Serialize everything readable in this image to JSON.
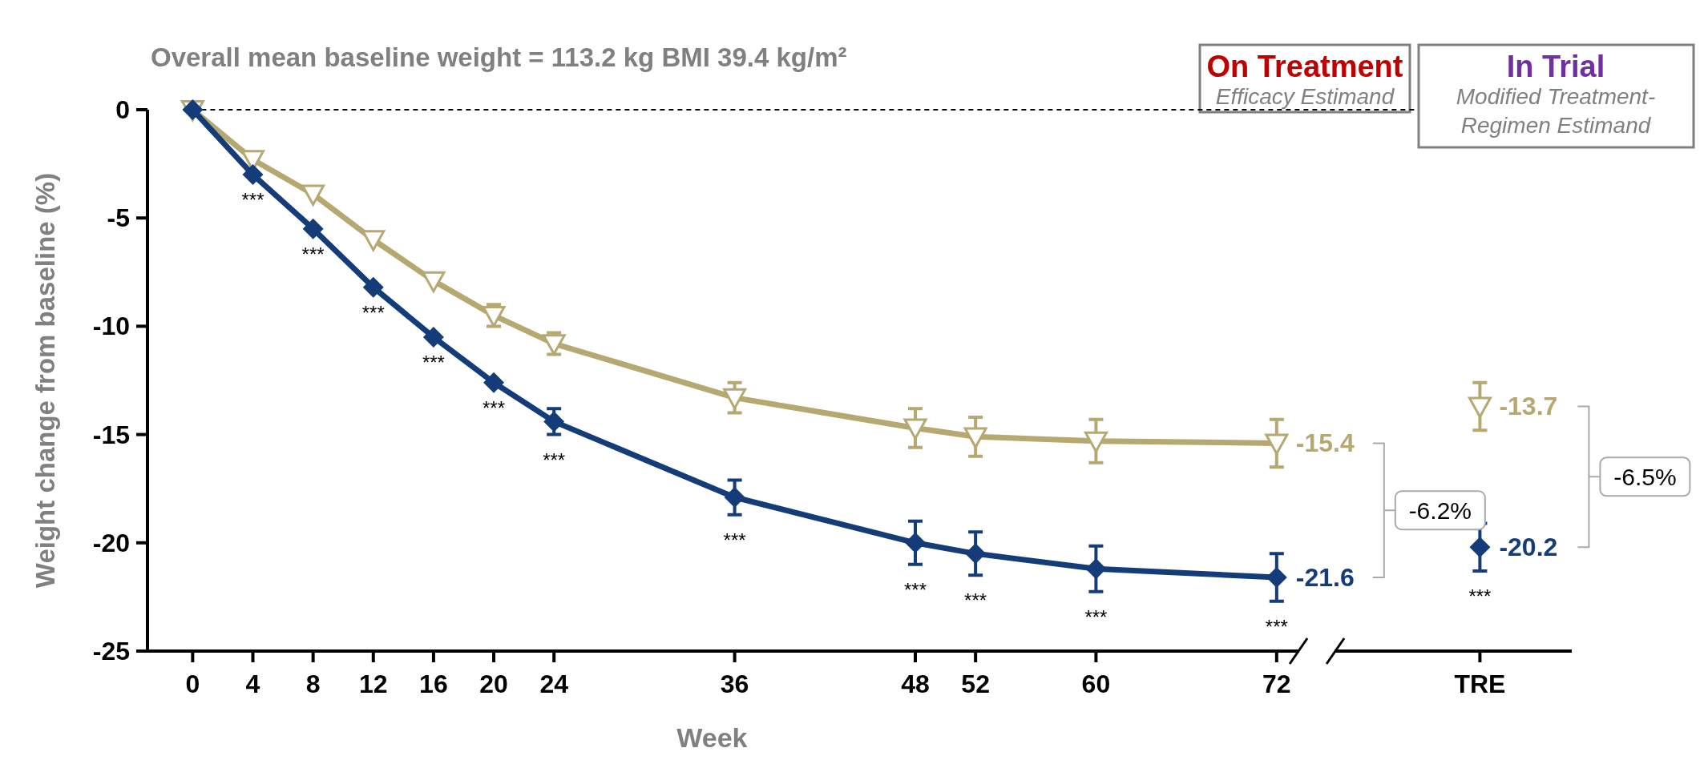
{
  "chart_data": {
    "type": "line",
    "title": "Overall mean baseline weight = 113.2 kg BMI 39.4 kg/m²",
    "xlabel": "Week",
    "ylabel": "Weight change from baseline (%)",
    "xlim": [
      -3,
      91.6
    ],
    "xticks": [
      0,
      4,
      8,
      12,
      16,
      20,
      24,
      36,
      48,
      52,
      60,
      72,
      {
        "value": 85.5,
        "label": "TRE"
      }
    ],
    "ylim": [
      -25,
      0
    ],
    "yticks": [
      -25,
      -20,
      -15,
      -10,
      -5,
      0
    ],
    "ref_lines": [
      {
        "axis": "y",
        "value": 0,
        "line_style": "dashed",
        "color": "#000000"
      }
    ],
    "series": [
      {
        "color": "#b5a871",
        "marker": "triangle",
        "x": [
          0,
          4,
          8,
          12,
          16,
          20,
          24,
          36,
          48,
          52,
          60,
          72
        ],
        "values": [
          0,
          -2.3,
          -3.9,
          -6.0,
          -7.9,
          -9.5,
          -10.8,
          -13.3,
          -14.7,
          -15.1,
          -15.3,
          -15.4
        ],
        "errors": [
          null,
          null,
          null,
          null,
          null,
          0.5,
          0.5,
          0.7,
          0.9,
          0.9,
          1.0,
          1.1
        ],
        "value_labels": [
          null,
          null,
          null,
          null,
          null,
          null,
          null,
          null,
          null,
          null,
          null,
          "-15.4"
        ]
      },
      {
        "color": "#143c78",
        "marker": "diamond",
        "x": [
          0,
          4,
          8,
          12,
          16,
          20,
          24,
          36,
          48,
          52,
          60,
          72
        ],
        "values": [
          0,
          -3.0,
          -5.5,
          -8.2,
          -10.5,
          -12.6,
          -14.4,
          -17.9,
          -20.0,
          -20.5,
          -21.2,
          -21.6
        ],
        "errors": [
          null,
          null,
          null,
          null,
          null,
          null,
          0.6,
          0.8,
          1.0,
          1.0,
          1.05,
          1.1
        ],
        "value_labels": [
          null,
          null,
          null,
          null,
          null,
          null,
          null,
          null,
          null,
          null,
          null,
          "-21.6"
        ]
      },
      {
        "type": "scatter",
        "color": "#b5a871",
        "marker": "triangle",
        "x": [
          85.5
        ],
        "values": [
          -13.7
        ],
        "errors": [
          1.1
        ],
        "value_labels": [
          "-13.7"
        ]
      },
      {
        "type": "scatter",
        "color": "#143c78",
        "marker": "diamond",
        "x": [
          85.5
        ],
        "values": [
          -20.2
        ],
        "errors": [
          1.1
        ],
        "value_labels": [
          "-20.2"
        ]
      }
    ],
    "annotations": [
      "On Treatment",
      "Efficacy Estimand",
      "In Trial",
      "Modified Treatment-",
      "Regimen Estimand",
      "-6.2%",
      "-6.5%",
      "***",
      "***",
      "***",
      "***",
      "***",
      "***",
      "***",
      "***",
      "***",
      "***",
      "***",
      "***"
    ]
  }
}
